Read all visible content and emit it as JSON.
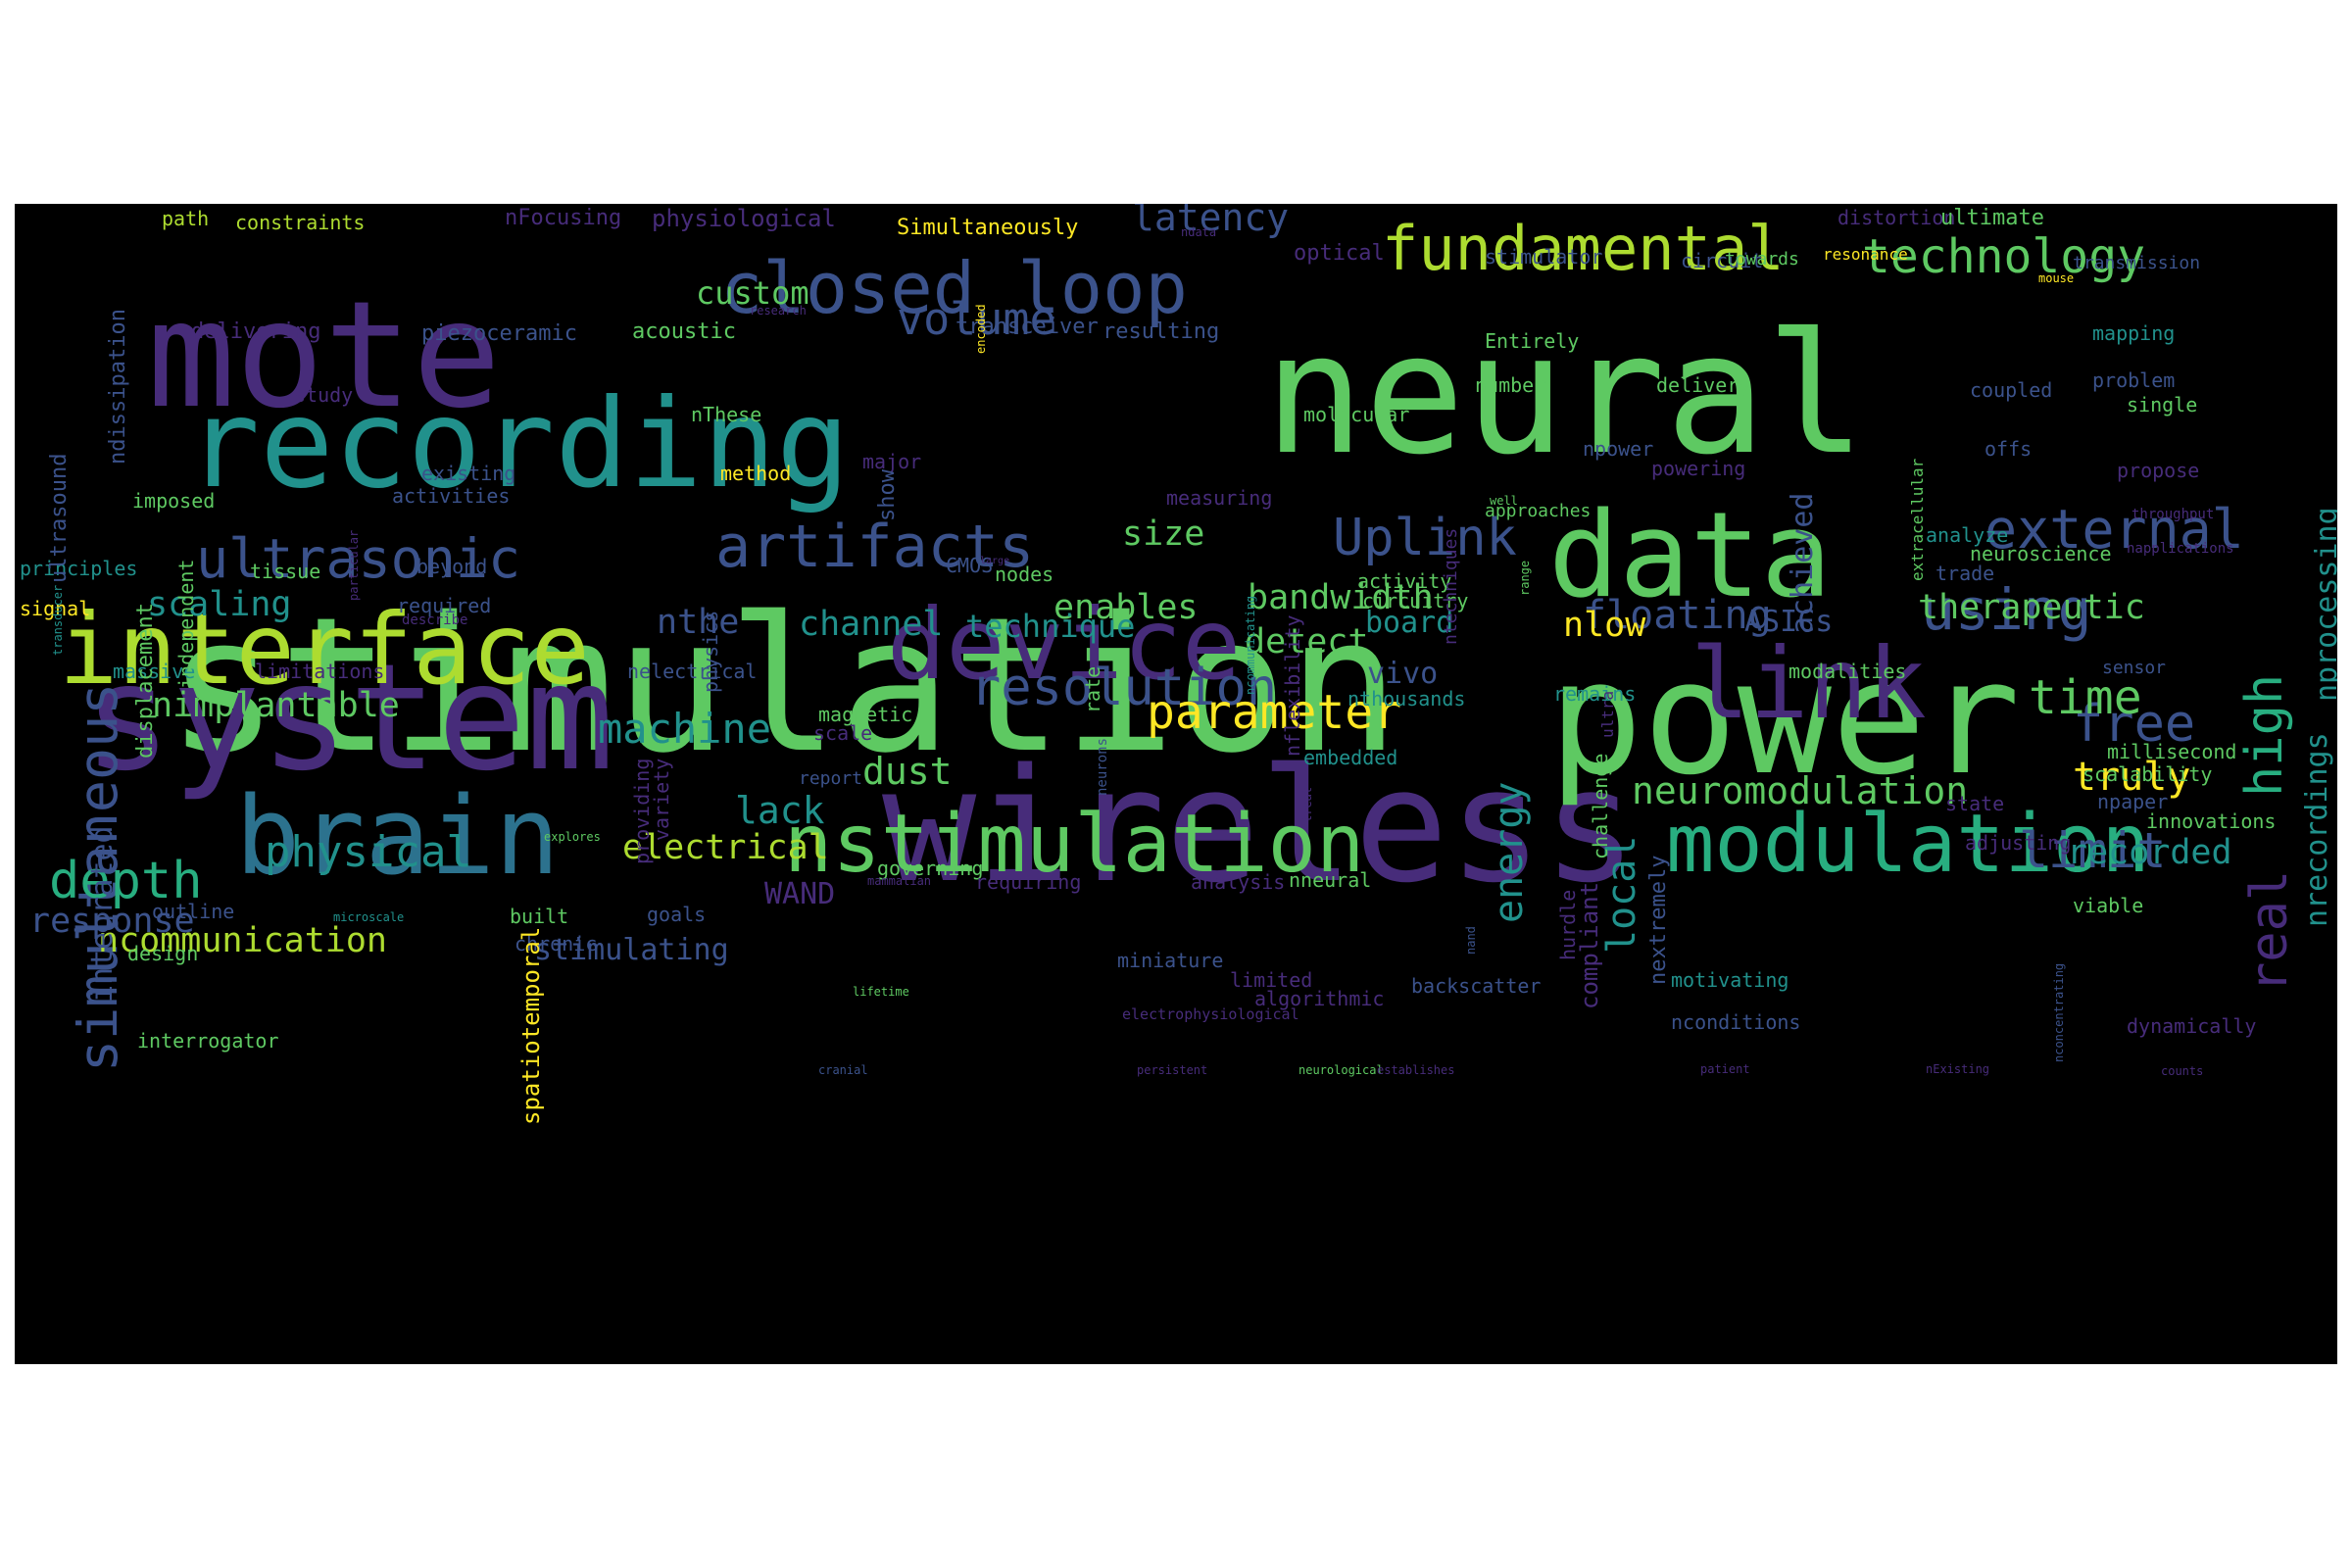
{
  "palette": {
    "p1": "#440154",
    "p2": "#472c7a",
    "p3": "#3b528b",
    "p4": "#2c728e",
    "p5": "#21918c",
    "p6": "#28ae80",
    "p7": "#5ec962",
    "p8": "#addc30",
    "p9": "#fde725"
  },
  "words": [
    {
      "text": "stimulation",
      "color": "#5ec962",
      "vertical": false
    },
    {
      "text": "neural",
      "color": "#5ec962",
      "vertical": false
    },
    {
      "text": "wireless",
      "color": "#472c7a",
      "vertical": false
    },
    {
      "text": "power",
      "color": "#5ec962",
      "vertical": false
    },
    {
      "text": "mote",
      "color": "#472c7a",
      "vertical": false
    },
    {
      "text": "system",
      "color": "#472c7a",
      "vertical": false
    },
    {
      "text": "recording",
      "color": "#21918c",
      "vertical": false
    },
    {
      "text": "data",
      "color": "#5ec962",
      "vertical": false
    },
    {
      "text": "brain",
      "color": "#2c728e",
      "vertical": false
    },
    {
      "text": "interface",
      "color": "#addc30",
      "vertical": false
    },
    {
      "text": "device",
      "color": "#472c7a",
      "vertical": false
    },
    {
      "text": "nstimulation",
      "color": "#5ec962",
      "vertical": false
    },
    {
      "text": "modulation",
      "color": "#28ae80",
      "vertical": false
    },
    {
      "text": "link",
      "color": "#472c7a",
      "vertical": false
    },
    {
      "text": "closed loop",
      "color": "#3b528b",
      "vertical": false
    },
    {
      "text": "fundamental",
      "color": "#addc30",
      "vertical": false
    },
    {
      "text": "artifacts",
      "color": "#3b528b",
      "vertical": false
    },
    {
      "text": "ultrasonic",
      "color": "#3b528b",
      "vertical": false
    },
    {
      "text": "external",
      "color": "#3b528b",
      "vertical": false
    },
    {
      "text": "simultaneous",
      "color": "#3b528b",
      "vertical": true
    },
    {
      "text": "resolution",
      "color": "#3b528b",
      "vertical": false
    },
    {
      "text": "technology",
      "color": "#5ec962",
      "vertical": false
    },
    {
      "text": "Uplink",
      "color": "#3b528b",
      "vertical": false
    },
    {
      "text": "using",
      "color": "#3b528b",
      "vertical": false
    },
    {
      "text": "free",
      "color": "#3b528b",
      "vertical": false
    },
    {
      "text": "time",
      "color": "#5ec962",
      "vertical": false
    },
    {
      "text": "high",
      "color": "#28ae80",
      "vertical": true
    },
    {
      "text": "real",
      "color": "#472c7a",
      "vertical": true
    },
    {
      "text": "depth",
      "color": "#28ae80",
      "vertical": false
    },
    {
      "text": "parameter",
      "color": "#fde725",
      "vertical": false
    },
    {
      "text": "neuromodulation",
      "color": "#5ec962",
      "vertical": false
    },
    {
      "text": "physical",
      "color": "#21918c",
      "vertical": false
    },
    {
      "text": "limit",
      "color": "#3b528b",
      "vertical": false
    },
    {
      "text": "machine",
      "color": "#21918c",
      "vertical": false
    },
    {
      "text": "energy",
      "color": "#21918c",
      "vertical": true
    },
    {
      "text": "volume",
      "color": "#3b528b",
      "vertical": false
    },
    {
      "text": "latency",
      "color": "#3b528b",
      "vertical": false
    },
    {
      "text": "floating",
      "color": "#3b528b",
      "vertical": false
    },
    {
      "text": "recorded",
      "color": "#21918c",
      "vertical": false
    },
    {
      "text": "local",
      "color": "#21918c",
      "vertical": true
    },
    {
      "text": "nimplantable",
      "color": "#5ec962",
      "vertical": false
    },
    {
      "text": "ncommunication",
      "color": "#addc30",
      "vertical": false
    },
    {
      "text": "response",
      "color": "#3b528b",
      "vertical": false
    },
    {
      "text": "dust",
      "color": "#5ec962",
      "vertical": false
    },
    {
      "text": "lack",
      "color": "#21918c",
      "vertical": false
    },
    {
      "text": "electrical",
      "color": "#addc30",
      "vertical": false
    },
    {
      "text": "truly",
      "color": "#fde725",
      "vertical": false
    },
    {
      "text": "scaling",
      "color": "#21918c",
      "vertical": false
    },
    {
      "text": "bandwidth",
      "color": "#5ec962",
      "vertical": false
    },
    {
      "text": "enables",
      "color": "#5ec962",
      "vertical": false
    },
    {
      "text": "nthe",
      "color": "#3b528b",
      "vertical": false
    },
    {
      "text": "channel",
      "color": "#21918c",
      "vertical": false
    },
    {
      "text": "size",
      "color": "#5ec962",
      "vertical": false
    },
    {
      "text": "achieved",
      "color": "#3b528b",
      "vertical": true
    },
    {
      "text": "nrecordings",
      "color": "#21918c",
      "vertical": true
    },
    {
      "text": "nprocessing",
      "color": "#21918c",
      "vertical": true
    },
    {
      "text": "therapeutic",
      "color": "#5ec962",
      "vertical": false
    },
    {
      "text": "detect",
      "color": "#5ec962",
      "vertical": false
    },
    {
      "text": "technique",
      "color": "#21918c",
      "vertical": false
    },
    {
      "text": "nlow",
      "color": "#fde725",
      "vertical": false
    },
    {
      "text": "board",
      "color": "#21918c",
      "vertical": false
    },
    {
      "text": "ASICs",
      "color": "#3b528b",
      "vertical": false
    },
    {
      "text": "vivo",
      "color": "#3b528b",
      "vertical": false
    },
    {
      "text": "custom",
      "color": "#5ec962",
      "vertical": false
    },
    {
      "text": "stimulating",
      "color": "#3b528b",
      "vertical": false
    },
    {
      "text": "WAND",
      "color": "#472c7a",
      "vertical": false
    },
    {
      "text": "integrated",
      "color": "#3b528b",
      "vertical": true
    },
    {
      "text": "path",
      "color": "#addc30",
      "vertical": false
    },
    {
      "text": "constraints",
      "color": "#addc30",
      "vertical": false
    },
    {
      "text": "nFocusing",
      "color": "#472c7a",
      "vertical": false
    },
    {
      "text": "physiological",
      "color": "#472c7a",
      "vertical": false
    },
    {
      "text": "Simultaneously",
      "color": "#fde725",
      "vertical": false
    },
    {
      "text": "optical",
      "color": "#472c7a",
      "vertical": false
    },
    {
      "text": "stimulator",
      "color": "#3b528b",
      "vertical": false
    },
    {
      "text": "circuit",
      "color": "#3b528b",
      "vertical": false
    },
    {
      "text": "towards",
      "color": "#5ec962",
      "vertical": false
    },
    {
      "text": "resonance",
      "color": "#fde725",
      "vertical": false
    },
    {
      "text": "distortion",
      "color": "#472c7a",
      "vertical": false
    },
    {
      "text": "ultimate",
      "color": "#5ec962",
      "vertical": false
    },
    {
      "text": "transmission",
      "color": "#3b528b",
      "vertical": false
    },
    {
      "text": "mouse",
      "color": "#fde725",
      "vertical": false
    },
    {
      "text": "delivering",
      "color": "#472c7a",
      "vertical": false
    },
    {
      "text": "piezoceramic",
      "color": "#3b528b",
      "vertical": false
    },
    {
      "text": "acoustic",
      "color": "#5ec962",
      "vertical": false
    },
    {
      "text": "transceiver",
      "color": "#3b528b",
      "vertical": false
    },
    {
      "text": "resulting",
      "color": "#3b528b",
      "vertical": false
    },
    {
      "text": "Entirely",
      "color": "#5ec962",
      "vertical": false
    },
    {
      "text": "mapping",
      "color": "#21918c",
      "vertical": false
    },
    {
      "text": "number",
      "color": "#5ec962",
      "vertical": false
    },
    {
      "text": "delivery",
      "color": "#5ec962",
      "vertical": false
    },
    {
      "text": "coupled",
      "color": "#3b528b",
      "vertical": false
    },
    {
      "text": "problem",
      "color": "#3b528b",
      "vertical": false
    },
    {
      "text": "single",
      "color": "#5ec962",
      "vertical": false
    },
    {
      "text": "molecular",
      "color": "#5ec962",
      "vertical": false
    },
    {
      "text": "nThese",
      "color": "#5ec962",
      "vertical": false
    },
    {
      "text": "study",
      "color": "#472c7a",
      "vertical": false
    },
    {
      "text": "offs",
      "color": "#3b528b",
      "vertical": false
    },
    {
      "text": "npower",
      "color": "#3b528b",
      "vertical": false
    },
    {
      "text": "powering",
      "color": "#472c7a",
      "vertical": false
    },
    {
      "text": "existing",
      "color": "#3b528b",
      "vertical": false
    },
    {
      "text": "method",
      "color": "#fde725",
      "vertical": false
    },
    {
      "text": "major",
      "color": "#472c7a",
      "vertical": false
    },
    {
      "text": "propose",
      "color": "#472c7a",
      "vertical": false
    },
    {
      "text": "imposed",
      "color": "#5ec962",
      "vertical": false
    },
    {
      "text": "activities",
      "color": "#3b528b",
      "vertical": false
    },
    {
      "text": "measuring",
      "color": "#472c7a",
      "vertical": false
    },
    {
      "text": "approaches",
      "color": "#5ec962",
      "vertical": false
    },
    {
      "text": "well",
      "color": "#5ec962",
      "vertical": false
    },
    {
      "text": "throughput",
      "color": "#472c7a",
      "vertical": false
    },
    {
      "text": "analyze",
      "color": "#21918c",
      "vertical": false
    },
    {
      "text": "neuroscience",
      "color": "#5ec962",
      "vertical": false
    },
    {
      "text": "napplications",
      "color": "#472c7a",
      "vertical": false
    },
    {
      "text": "trade",
      "color": "#3b528b",
      "vertical": false
    },
    {
      "text": "principles",
      "color": "#21918c",
      "vertical": false
    },
    {
      "text": "tissue",
      "color": "#5ec962",
      "vertical": false
    },
    {
      "text": "beyond",
      "color": "#3b528b",
      "vertical": false
    },
    {
      "text": "CMOS",
      "color": "#3b528b",
      "vertical": false
    },
    {
      "text": "large",
      "color": "#472c7a",
      "vertical": false
    },
    {
      "text": "nodes",
      "color": "#5ec962",
      "vertical": false
    },
    {
      "text": "activity",
      "color": "#5ec962",
      "vertical": false
    },
    {
      "text": "circuitry",
      "color": "#5ec962",
      "vertical": false
    },
    {
      "text": "signal",
      "color": "#fde725",
      "vertical": false
    },
    {
      "text": "required",
      "color": "#3b528b",
      "vertical": false
    },
    {
      "text": "describe",
      "color": "#472c7a",
      "vertical": false
    },
    {
      "text": "massive",
      "color": "#21918c",
      "vertical": false
    },
    {
      "text": "limitations",
      "color": "#472c7a",
      "vertical": false
    },
    {
      "text": "nelectrical",
      "color": "#3b528b",
      "vertical": false
    },
    {
      "text": "modalities",
      "color": "#5ec962",
      "vertical": false
    },
    {
      "text": "sensor",
      "color": "#3b528b",
      "vertical": false
    },
    {
      "text": "nthousands",
      "color": "#21918c",
      "vertical": false
    },
    {
      "text": "remains",
      "color": "#21918c",
      "vertical": false
    },
    {
      "text": "magnetic",
      "color": "#5ec962",
      "vertical": false
    },
    {
      "text": "scale",
      "color": "#472c7a",
      "vertical": false
    },
    {
      "text": "embedded",
      "color": "#21918c",
      "vertical": false
    },
    {
      "text": "millisecond",
      "color": "#5ec962",
      "vertical": false
    },
    {
      "text": "scalability",
      "color": "#5ec962",
      "vertical": false
    },
    {
      "text": "report",
      "color": "#3b528b",
      "vertical": false
    },
    {
      "text": "state",
      "color": "#472c7a",
      "vertical": false
    },
    {
      "text": "npaper",
      "color": "#3b528b",
      "vertical": false
    },
    {
      "text": "innovations",
      "color": "#5ec962",
      "vertical": false
    },
    {
      "text": "adjusting",
      "color": "#472c7a",
      "vertical": false
    },
    {
      "text": "explores",
      "color": "#5ec962",
      "vertical": false
    },
    {
      "text": "governing",
      "color": "#5ec962",
      "vertical": false
    },
    {
      "text": "requiring",
      "color": "#472c7a",
      "vertical": false
    },
    {
      "text": "mammalian",
      "color": "#472c7a",
      "vertical": false
    },
    {
      "text": "analysis",
      "color": "#472c7a",
      "vertical": false
    },
    {
      "text": "nneural",
      "color": "#5ec962",
      "vertical": false
    },
    {
      "text": "microscale",
      "color": "#21918c",
      "vertical": false
    },
    {
      "text": "outline",
      "color": "#3b528b",
      "vertical": false
    },
    {
      "text": "built",
      "color": "#5ec962",
      "vertical": false
    },
    {
      "text": "goals",
      "color": "#3b528b",
      "vertical": false
    },
    {
      "text": "viable",
      "color": "#5ec962",
      "vertical": false
    },
    {
      "text": "design",
      "color": "#5ec962",
      "vertical": false
    },
    {
      "text": "chronic",
      "color": "#3b528b",
      "vertical": false
    },
    {
      "text": "miniature",
      "color": "#3b528b",
      "vertical": false
    },
    {
      "text": "limited",
      "color": "#472c7a",
      "vertical": false
    },
    {
      "text": "algorithmic",
      "color": "#472c7a",
      "vertical": false
    },
    {
      "text": "backscatter",
      "color": "#3b528b",
      "vertical": false
    },
    {
      "text": "motivating",
      "color": "#21918c",
      "vertical": false
    },
    {
      "text": "lifetime",
      "color": "#5ec962",
      "vertical": false
    },
    {
      "text": "electrophysiological",
      "color": "#472c7a",
      "vertical": false
    },
    {
      "text": "nconditions",
      "color": "#3b528b",
      "vertical": false
    },
    {
      "text": "dynamically",
      "color": "#472c7a",
      "vertical": false
    },
    {
      "text": "interrogator",
      "color": "#5ec962",
      "vertical": false
    },
    {
      "text": "cranial",
      "color": "#3b528b",
      "vertical": false
    },
    {
      "text": "persistent",
      "color": "#472c7a",
      "vertical": false
    },
    {
      "text": "neurological",
      "color": "#5ec962",
      "vertical": false
    },
    {
      "text": "establishes",
      "color": "#472c7a",
      "vertical": false
    },
    {
      "text": "patient",
      "color": "#472c7a",
      "vertical": false
    },
    {
      "text": "nExisting",
      "color": "#472c7a",
      "vertical": false
    },
    {
      "text": "counts",
      "color": "#472c7a",
      "vertical": false
    },
    {
      "text": "ndata",
      "color": "#472c7a",
      "vertical": false
    },
    {
      "text": "research",
      "color": "#472c7a",
      "vertical": false
    },
    {
      "text": "encoded",
      "color": "#fde725",
      "vertical": true
    },
    {
      "text": "nconcentrating",
      "color": "#3b528b",
      "vertical": true
    },
    {
      "text": "range",
      "color": "#5ec962",
      "vertical": true
    },
    {
      "text": "particular",
      "color": "#472c7a",
      "vertical": true
    },
    {
      "text": "ndissipation",
      "color": "#3b528b",
      "vertical": true
    },
    {
      "text": "ultrasound",
      "color": "#3b528b",
      "vertical": true
    },
    {
      "text": "displacement",
      "color": "#5ec962",
      "vertical": true
    },
    {
      "text": "independent",
      "color": "#5ec962",
      "vertical": true
    },
    {
      "text": "transducer",
      "color": "#21918c",
      "vertical": true
    },
    {
      "text": "show",
      "color": "#3b528b",
      "vertical": true
    },
    {
      "text": "physics",
      "color": "#3b528b",
      "vertical": true
    },
    {
      "text": "providing",
      "color": "#472c7a",
      "vertical": true
    },
    {
      "text": "variety",
      "color": "#472c7a",
      "vertical": true
    },
    {
      "text": "nflexibility",
      "color": "#472c7a",
      "vertical": true
    },
    {
      "text": "rate",
      "color": "#5ec962",
      "vertical": true
    },
    {
      "text": "neurons",
      "color": "#3b528b",
      "vertical": true
    },
    {
      "text": "treat",
      "color": "#472c7a",
      "vertical": true
    },
    {
      "text": "ncommunicating",
      "color": "#21918c",
      "vertical": true
    },
    {
      "text": "spatiotemporal",
      "color": "#fde725",
      "vertical": true
    },
    {
      "text": "nand",
      "color": "#3b528b",
      "vertical": true
    },
    {
      "text": "hurdle",
      "color": "#472c7a",
      "vertical": true
    },
    {
      "text": "compliant",
      "color": "#472c7a",
      "vertical": true
    },
    {
      "text": "nextremely",
      "color": "#3b528b",
      "vertical": true
    },
    {
      "text": "ultra",
      "color": "#472c7a",
      "vertical": true
    },
    {
      "text": "challenge",
      "color": "#5ec962",
      "vertical": true
    },
    {
      "text": "ntechniques",
      "color": "#472c7a",
      "vertical": true
    },
    {
      "text": "extracellular",
      "color": "#5ec962",
      "vertical": true
    }
  ]
}
